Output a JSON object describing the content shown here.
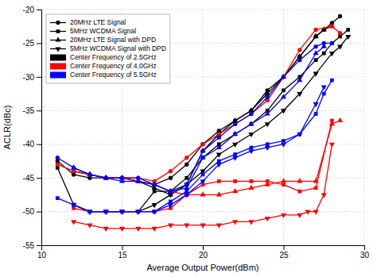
{
  "chart_data": {
    "type": "line",
    "xlabel": "Average Output Power(dBm)",
    "ylabel": "ACLR(dBc)",
    "xlim": [
      10,
      30
    ],
    "ylim": [
      -55,
      -20
    ],
    "xticks": [
      10,
      15,
      20,
      25,
      30
    ],
    "yticks": [
      -55,
      -50,
      -45,
      -40,
      -35,
      -30,
      -25,
      -20
    ],
    "grid": true,
    "legend": "upper left",
    "series": [
      {
        "name": "20MHz LTE Signal",
        "color": "black",
        "marker": "circle",
        "x": [
          11,
          12,
          13,
          14,
          15,
          16,
          17,
          18,
          19,
          20,
          21,
          22,
          23,
          24,
          25,
          26,
          27,
          27.5,
          28,
          28.5
        ],
        "values": [
          -42.5,
          -44.5,
          -45,
          -45,
          -45,
          -45.5,
          -46,
          -45,
          -43,
          -40,
          -38,
          -36.5,
          -35,
          -32,
          -30,
          -27,
          -24,
          -23,
          -22,
          -21
        ]
      },
      {
        "name": "5MHz WCDMA Signal",
        "color": "black",
        "marker": "square",
        "x": [
          11,
          12,
          13,
          14,
          15,
          16,
          17,
          18,
          19,
          20,
          21,
          22,
          23,
          24,
          25,
          26,
          27,
          27.5,
          28,
          28.5,
          29
        ],
        "values": [
          -43.5,
          -49,
          -50,
          -50,
          -50,
          -50,
          -47,
          -47,
          -45,
          -42,
          -40,
          -38.5,
          -37,
          -35,
          -32,
          -30,
          -27.5,
          -26.5,
          -25,
          -24,
          -23
        ]
      },
      {
        "name": "20MHz LTE Signal with DPD",
        "color": "black",
        "marker": "triangle-up",
        "x": [
          12,
          13,
          14,
          15,
          16,
          17,
          18,
          19,
          20,
          21,
          22,
          23,
          24,
          25,
          26,
          27,
          27.5,
          28
        ],
        "values": [
          -44,
          -44.5,
          -45,
          -45,
          -45.5,
          -46.5,
          -47.5,
          -46,
          -41,
          -38.5,
          -36.5,
          -35,
          -32.5,
          -30,
          -27,
          -24,
          -23,
          -22.5
        ]
      },
      {
        "name": "5MHz WCDMA Signal with DPD",
        "color": "black",
        "marker": "triangle-down",
        "x": [
          12,
          13,
          14,
          15,
          16,
          17,
          18,
          19,
          20,
          21,
          22,
          23,
          24,
          25,
          26,
          27,
          28,
          28.5,
          29
        ],
        "values": [
          -49,
          -50,
          -50,
          -50,
          -50,
          -49,
          -47.5,
          -46,
          -44,
          -41.5,
          -40,
          -38.5,
          -37,
          -35,
          -32.5,
          -29.5,
          -26.5,
          -25.5,
          -24
        ]
      },
      {
        "name": "20MHz LTE Signal",
        "color": "red",
        "marker": "circle",
        "x": [
          11,
          12,
          13,
          14,
          15,
          16,
          17,
          18,
          19,
          20,
          21,
          22,
          23,
          24,
          25,
          26,
          27,
          28,
          28.5
        ],
        "values": [
          -43,
          -44,
          -44.5,
          -45,
          -45,
          -45,
          -45.5,
          -44,
          -42,
          -40,
          -38.5,
          -37,
          -35.5,
          -33.5,
          -30,
          -26,
          -23,
          -22.5,
          -23.5
        ]
      },
      {
        "name": "5MHz WCDMA Signal",
        "color": "red",
        "marker": "square",
        "x": [
          12,
          13,
          14,
          15,
          16,
          17,
          18,
          19,
          20,
          21,
          22,
          23,
          24,
          25,
          26,
          27,
          28
        ],
        "values": [
          -49.5,
          -50,
          -50,
          -50,
          -50,
          -50,
          -49.5,
          -47.5,
          -46,
          -45.5,
          -45.5,
          -45.5,
          -45.5,
          -46,
          -47,
          -46.5,
          -36.5
        ]
      },
      {
        "name": "20MHz LTE Signal with DPD",
        "color": "red",
        "marker": "triangle-up",
        "x": [
          12,
          13,
          14,
          15,
          16,
          17,
          18,
          19,
          20,
          21,
          22,
          23,
          24,
          25,
          26,
          27,
          28,
          28.5
        ],
        "values": [
          -44,
          -44.5,
          -45,
          -45,
          -45.5,
          -46,
          -47,
          -47.5,
          -47.5,
          -47.5,
          -47,
          -46.5,
          -46,
          -45.5,
          -45.5,
          -45.5,
          -37,
          -36.5
        ]
      },
      {
        "name": "5MHz WCDMA Signal with DPD",
        "color": "red",
        "marker": "triangle-down",
        "x": [
          12,
          13,
          14,
          15,
          16,
          17,
          18,
          19,
          20,
          21,
          22,
          23,
          24,
          25,
          26,
          26.5,
          27,
          27.5,
          28
        ],
        "values": [
          -51.5,
          -52,
          -52.5,
          -52.5,
          -52.5,
          -52.5,
          -52,
          -52,
          -52,
          -52,
          -51.5,
          -51.5,
          -51,
          -50.5,
          -50.5,
          -50,
          -50,
          -47.5,
          -40
        ]
      },
      {
        "name": "20MHz LTE Signal",
        "color": "blue",
        "marker": "circle",
        "x": [
          11,
          12,
          13,
          14,
          15,
          16,
          17,
          18,
          19,
          20,
          21,
          22,
          23,
          24,
          25,
          26,
          27,
          27.5,
          28
        ],
        "values": [
          -42,
          -43.5,
          -44.5,
          -45,
          -45,
          -45,
          -46,
          -47,
          -46,
          -41,
          -39,
          -37,
          -35.5,
          -33,
          -30,
          -27.5,
          -25.5,
          -25,
          -25
        ]
      },
      {
        "name": "5MHz WCDMA Signal",
        "color": "blue",
        "marker": "square",
        "x": [
          11,
          12,
          13,
          14,
          15,
          16,
          17,
          18,
          19,
          20,
          21,
          22,
          23,
          24,
          25,
          26,
          27,
          27.5,
          28
        ],
        "values": [
          -48,
          -49,
          -50,
          -50,
          -50,
          -50,
          -50,
          -48.5,
          -47,
          -44.5,
          -42.5,
          -41.5,
          -40.5,
          -40,
          -39.5,
          -38.5,
          -35.5,
          -32.5,
          -30.5
        ]
      },
      {
        "name": "20MHz LTE Signal with DPD",
        "color": "blue",
        "marker": "triangle-up",
        "x": [
          12,
          13,
          14,
          15,
          16,
          17,
          18,
          19,
          20,
          21,
          22,
          23,
          24,
          25,
          26,
          27,
          27.5
        ],
        "values": [
          -43.5,
          -44.5,
          -45,
          -45.5,
          -45.5,
          -46,
          -47,
          -46.5,
          -42,
          -40.5,
          -38.5,
          -37,
          -35.5,
          -33,
          -30.5,
          -26.5,
          -25.5
        ]
      },
      {
        "name": "5MHz WCDMA Signal with DPD",
        "color": "blue",
        "marker": "triangle-down",
        "x": [
          12,
          13,
          14,
          15,
          16,
          17,
          18,
          19,
          20,
          21,
          22,
          23,
          24,
          25,
          26,
          27,
          27.5
        ],
        "values": [
          -49,
          -50,
          -50,
          -50,
          -50,
          -50,
          -49,
          -47.5,
          -45.5,
          -43,
          -42,
          -41,
          -40.5,
          -40,
          -38.5,
          -34,
          -31.5
        ]
      }
    ],
    "color_groups": [
      {
        "name": "Center Frequency of 2.5GHz",
        "color": "black"
      },
      {
        "name": "Center Frequency of 4.0GHz",
        "color": "red"
      },
      {
        "name": "Center Frequency of 5.5GHz",
        "color": "blue"
      }
    ]
  }
}
